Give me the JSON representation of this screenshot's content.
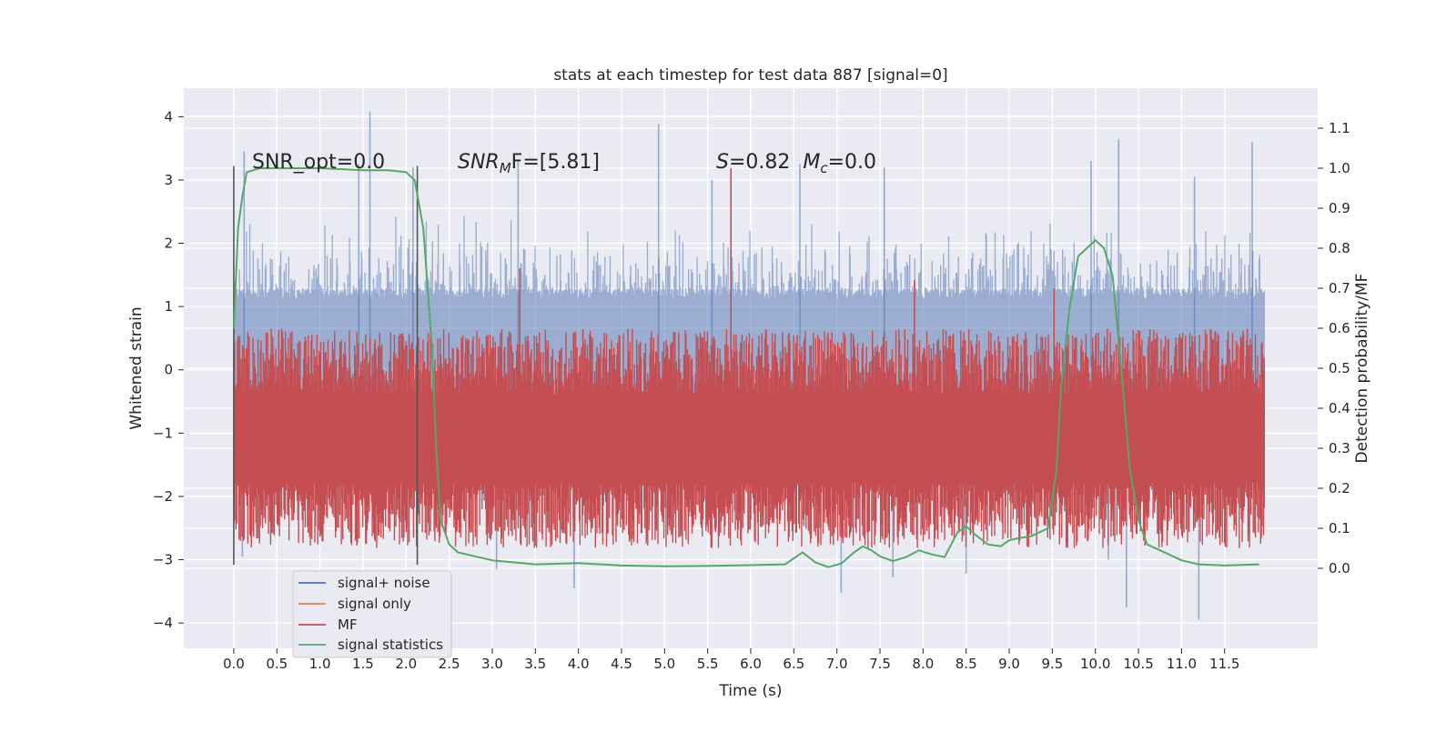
{
  "chart_data": {
    "type": "line",
    "title": "stats at each timestep for test data 887 [signal=0]",
    "xlabel": "Time (s)",
    "ylabel": "Whitened strain",
    "y2label": "Detection probability/MF",
    "xlim": [
      -0.58,
      12.58
    ],
    "ylim": [
      -4.4,
      4.45
    ],
    "y2lim": [
      -0.2,
      1.2
    ],
    "x_ticks": [
      0.0,
      0.5,
      1.0,
      1.5,
      2.0,
      2.5,
      3.0,
      3.5,
      4.0,
      4.5,
      5.0,
      5.5,
      6.0,
      6.5,
      7.0,
      7.5,
      8.0,
      8.5,
      9.0,
      9.5,
      10.0,
      10.5,
      11.0,
      11.5
    ],
    "x_tick_labels": [
      "0.0",
      "0.5",
      "1.0",
      "1.5",
      "2.0",
      "2.5",
      "3.0",
      "3.5",
      "4.0",
      "4.5",
      "5.0",
      "5.5",
      "6.0",
      "6.5",
      "7.0",
      "7.5",
      "8.0",
      "8.5",
      "9.0",
      "9.5",
      "10.0",
      "10.5",
      "11.0",
      "11.5"
    ],
    "y_ticks": [
      4,
      3,
      2,
      1,
      0,
      -1,
      -2,
      -3,
      -4
    ],
    "y_tick_labels": [
      "4",
      "3",
      "2",
      "1",
      "0",
      "−1",
      "−2",
      "−3",
      "−4"
    ],
    "y2_ticks": [
      1.1,
      1.0,
      0.9,
      0.8,
      0.7,
      0.6,
      0.5,
      0.4,
      0.3,
      0.2,
      0.1,
      0.0
    ],
    "y2_tick_labels": [
      "1.1",
      "1.0",
      "0.9",
      "0.8",
      "0.7",
      "0.6",
      "0.5",
      "0.4",
      "0.3",
      "0.2",
      "0.1",
      "0.0"
    ],
    "grid": true,
    "legend_position": "lower-left",
    "annotations": {
      "snr_opt": "SNR_opt=0.0",
      "snr_mf_sym": "SNR",
      "snr_mf_sub": "M",
      "snr_mf_rest": "F=[5.81]",
      "s_sym": "S",
      "s_val": "=0.82",
      "mc_sym": "M",
      "mc_sub": "c",
      "mc_val": "=0.0"
    },
    "vlines_x": [
      0.0,
      2.13
    ],
    "vlines_y_range": [
      -3.08,
      3.22
    ],
    "series": [
      {
        "name": "signal+ noise",
        "color": "#4c72b0",
        "description_values": {
          "x_range": [
            0.0,
            11.96
          ],
          "typical_band": [
            -1.2,
            1.3
          ],
          "max_spike": 4.1,
          "min_spike": -3.95
        },
        "spikes": [
          {
            "x": 0.12,
            "y": 3.45
          },
          {
            "x": 0.1,
            "y": -2.95
          },
          {
            "x": 1.58,
            "y": 4.08
          },
          {
            "x": 1.45,
            "y": 3.25
          },
          {
            "x": 2.08,
            "y": 3.2
          },
          {
            "x": 3.3,
            "y": 3.3
          },
          {
            "x": 3.95,
            "y": -3.45
          },
          {
            "x": 4.93,
            "y": 3.88
          },
          {
            "x": 5.55,
            "y": 3.0
          },
          {
            "x": 6.57,
            "y": 3.25
          },
          {
            "x": 7.05,
            "y": -3.52
          },
          {
            "x": 7.55,
            "y": 3.2
          },
          {
            "x": 7.65,
            "y": -3.28
          },
          {
            "x": 8.5,
            "y": -3.22
          },
          {
            "x": 9.95,
            "y": 3.3
          },
          {
            "x": 10.27,
            "y": 3.65
          },
          {
            "x": 10.36,
            "y": -3.75
          },
          {
            "x": 11.2,
            "y": -3.95
          },
          {
            "x": 11.82,
            "y": 3.6
          },
          {
            "x": 11.15,
            "y": 3.05
          },
          {
            "x": 3.05,
            "y": -3.15
          },
          {
            "x": 10.15,
            "y": -3.0
          }
        ]
      },
      {
        "name": "signal only",
        "color": "#dd8452"
      },
      {
        "name": "MF",
        "color": "#c44e52",
        "description_values": {
          "x_range": [
            0.0,
            11.96
          ],
          "typical_band": [
            0.05,
            0.6
          ],
          "spikes": [
            {
              "x": 3.32,
              "y": 0.75
            },
            {
              "x": 5.77,
              "y": 1.0
            },
            {
              "x": 7.9,
              "y": 0.72
            },
            {
              "x": 9.52,
              "y": 0.7
            }
          ]
        }
      },
      {
        "name": "signal statistics",
        "color": "#55a868",
        "x": [
          0.0,
          0.05,
          0.1,
          0.15,
          0.3,
          0.5,
          1.0,
          1.5,
          1.8,
          2.0,
          2.1,
          2.2,
          2.3,
          2.35,
          2.4,
          2.5,
          2.6,
          2.8,
          3.0,
          3.5,
          4.0,
          4.5,
          5.0,
          5.5,
          6.0,
          6.4,
          6.6,
          6.75,
          6.9,
          7.05,
          7.2,
          7.3,
          7.4,
          7.5,
          7.65,
          7.8,
          7.95,
          8.1,
          8.25,
          8.4,
          8.5,
          8.6,
          8.75,
          8.9,
          9.0,
          9.1,
          9.25,
          9.45,
          9.55,
          9.6,
          9.7,
          9.8,
          9.9,
          10.0,
          10.1,
          10.2,
          10.3,
          10.4,
          10.5,
          10.6,
          10.8,
          11.0,
          11.2,
          11.5,
          11.9
        ],
        "y": [
          0.6,
          0.85,
          0.93,
          0.99,
          1.0,
          1.0,
          1.0,
          0.995,
          0.995,
          0.99,
          0.97,
          0.85,
          0.55,
          0.3,
          0.12,
          0.06,
          0.04,
          0.03,
          0.02,
          0.01,
          0.013,
          0.007,
          0.005,
          0.006,
          0.008,
          0.01,
          0.04,
          0.015,
          0.003,
          0.012,
          0.04,
          0.055,
          0.045,
          0.03,
          0.018,
          0.028,
          0.045,
          0.035,
          0.028,
          0.09,
          0.105,
          0.085,
          0.06,
          0.055,
          0.07,
          0.075,
          0.08,
          0.1,
          0.25,
          0.45,
          0.65,
          0.78,
          0.8,
          0.82,
          0.8,
          0.73,
          0.5,
          0.25,
          0.12,
          0.06,
          0.04,
          0.02,
          0.01,
          0.007,
          0.01
        ]
      }
    ]
  }
}
